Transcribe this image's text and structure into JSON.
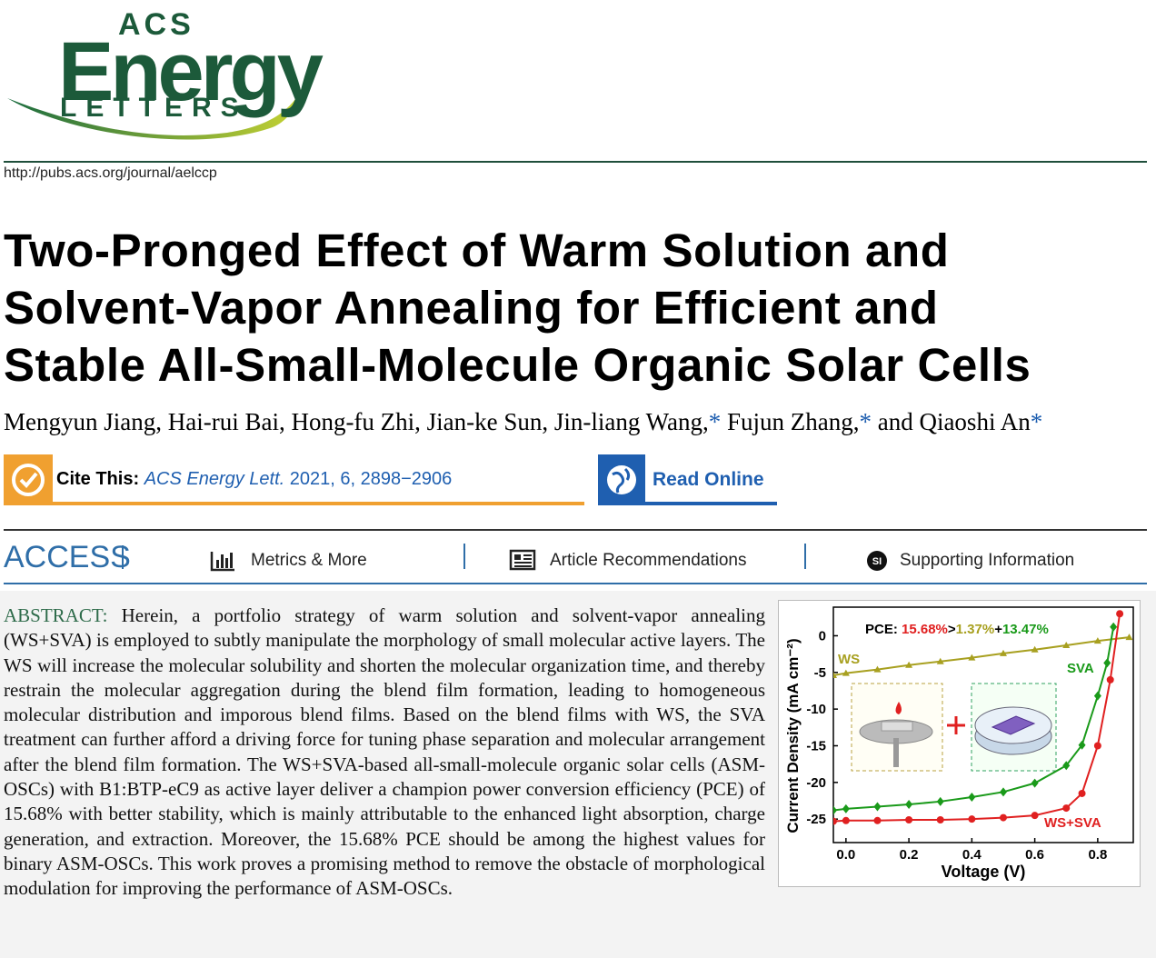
{
  "header": {
    "logo": {
      "top": "ACS",
      "main": "Energy",
      "bottom": "LETTERS"
    },
    "url": "http://pubs.acs.org/journal/aelccp"
  },
  "article": {
    "title_lines": [
      "Two-Pronged Effect of Warm Solution and",
      "Solvent-Vapor Annealing for Efficient and",
      "Stable All-Small-Molecule Organic Solar Cells"
    ],
    "authors": [
      {
        "text": "Mengyun Jiang, Hai-rui Bai, Hong-fu Zhi, Jian-ke Sun, Jin-liang Wang,",
        "mark": "*"
      },
      {
        "text": " Fujun Zhang,",
        "mark": "*"
      },
      {
        "text": " and Qiaoshi An",
        "mark": "*"
      }
    ],
    "cite": {
      "label": "Cite This:",
      "journal": "ACS Energy Lett.",
      "citation": " 2021, 6, 2898−2906"
    },
    "read_online": "Read Online"
  },
  "access": {
    "title": "ACCESS",
    "items": [
      "Metrics & More",
      "Article Recommendations",
      "Supporting Information"
    ],
    "si_icon": "SI"
  },
  "abstract": {
    "label": "ABSTRACT:",
    "text": "Herein, a portfolio strategy of warm solution and solvent-vapor annealing (WS+SVA) is employed to subtly manipulate the morphology of small molecular active layers. The WS will increase the molecular solubility and shorten the molecular organization time, and thereby restrain the molecular aggregation during the blend film formation, leading to homogeneous molecular distribution and imporous blend films. Based on the blend films with WS, the SVA treatment can further afford a driving force for tuning phase separation and molecular arrangement after the blend film formation. The WS+SVA-based all-small-molecule organic solar cells (ASM-OSCs) with B1:BTP-eC9 as active layer deliver a champion power conversion efficiency (PCE) of 15.68% with better stability, which is mainly attributable to the enhanced light absorption, charge generation, and extraction. Moreover, the 15.68% PCE should be among the highest values for binary ASM-OSCs. This work proves a promising method to remove the obstacle of morphological modulation for improving the performance of ASM-OSCs."
  },
  "figure": {
    "chart_data": {
      "type": "line",
      "xlabel": "Voltage (V)",
      "ylabel": "Current Density (mA cm⁻²)",
      "annotation": [
        {
          "text": "PCE: ",
          "color": "#000000"
        },
        {
          "text": "15.68%",
          "color": "#e02020"
        },
        {
          "text": ">",
          "color": "#000000"
        },
        {
          "text": "1.37%",
          "color": "#a8a020"
        },
        {
          "text": "+",
          "color": "#000000"
        },
        {
          "text": "13.47%",
          "color": "#1a9a1a"
        }
      ],
      "xlim": [
        -0.04,
        0.913
      ],
      "ylim": [
        -28.2,
        3.9
      ],
      "xticks": [
        {
          "value": 0,
          "label": "0.0"
        },
        0.2,
        0.4,
        0.6,
        0.8
      ],
      "yticks": [
        0,
        -5,
        -10,
        -15,
        -20,
        -25
      ],
      "series": [
        {
          "name": "WS",
          "color": "#a8a020",
          "x": [
            -0.04,
            0.0,
            0.1,
            0.2,
            0.3,
            0.4,
            0.5,
            0.6,
            0.7,
            0.8,
            0.9
          ],
          "values": [
            -5.4,
            -5.1,
            -4.6,
            -4.0,
            -3.5,
            -3.0,
            -2.4,
            -1.9,
            -1.3,
            -0.7,
            -0.2
          ]
        },
        {
          "name": "SVA",
          "color": "#1a9a1a",
          "x": [
            -0.04,
            0.0,
            0.1,
            0.2,
            0.3,
            0.4,
            0.5,
            0.6,
            0.7,
            0.75,
            0.8,
            0.83,
            0.85
          ],
          "values": [
            -23.8,
            -23.6,
            -23.3,
            -23.0,
            -22.6,
            -22.0,
            -21.3,
            -20.1,
            -17.7,
            -14.9,
            -8.2,
            -3.7,
            1.2
          ]
        },
        {
          "name": "WS+SVA",
          "color": "#e02020",
          "x": [
            -0.04,
            0.0,
            0.1,
            0.2,
            0.3,
            0.4,
            0.5,
            0.6,
            0.7,
            0.75,
            0.8,
            0.84,
            0.87
          ],
          "values": [
            -25.3,
            -25.2,
            -25.2,
            -25.1,
            -25.1,
            -25.0,
            -24.8,
            -24.5,
            -23.5,
            -21.5,
            -15.0,
            -6.0,
            3.0
          ]
        }
      ]
    }
  }
}
